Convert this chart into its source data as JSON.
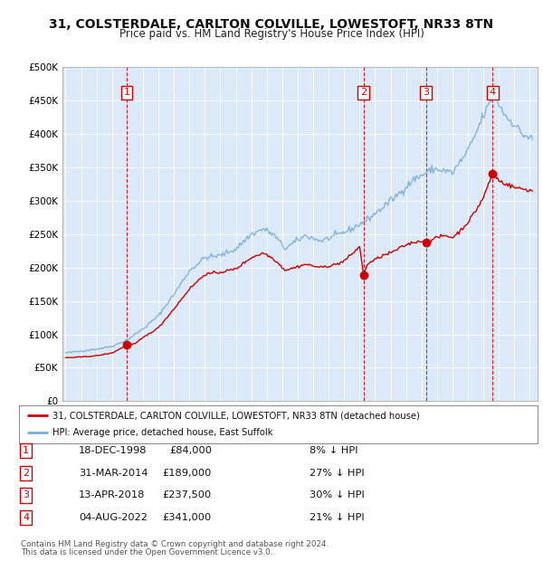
{
  "title": "31, COLSTERDALE, CARLTON COLVILLE, LOWESTOFT, NR33 8TN",
  "subtitle": "Price paid vs. HM Land Registry's House Price Index (HPI)",
  "legend_red": "31, COLSTERDALE, CARLTON COLVILLE, LOWESTOFT, NR33 8TN (detached house)",
  "legend_blue": "HPI: Average price, detached house, East Suffolk",
  "transactions": [
    {
      "num": "1",
      "date": "18-DEC-1998",
      "price": 84000,
      "price_str": "£84,000",
      "pct": "8%",
      "date_decimal": 1998.96
    },
    {
      "num": "2",
      "date": "31-MAR-2014",
      "price": 189000,
      "price_str": "£189,000",
      "pct": "27%",
      "date_decimal": 2014.25
    },
    {
      "num": "3",
      "date": "13-APR-2018",
      "price": 237500,
      "price_str": "£237,500",
      "pct": "30%",
      "date_decimal": 2018.28
    },
    {
      "num": "4",
      "date": "04-AUG-2022",
      "price": 341000,
      "price_str": "£341,000",
      "pct": "21%",
      "date_decimal": 2022.59
    }
  ],
  "footer1": "Contains HM Land Registry data © Crown copyright and database right 2024.",
  "footer2": "This data is licensed under the Open Government Licence v3.0.",
  "bg_color": "#dce9f8",
  "red_color": "#cc0000",
  "blue_color": "#7aaed6",
  "ylim_max": 500000,
  "xlim_start": 1994.8,
  "xlim_end": 2025.5,
  "yticks": [
    0,
    50000,
    100000,
    150000,
    200000,
    250000,
    300000,
    350000,
    400000,
    450000,
    500000
  ],
  "ylabels": [
    "£0",
    "£50K",
    "£100K",
    "£150K",
    "£200K",
    "£250K",
    "£300K",
    "£350K",
    "£400K",
    "£450K",
    "£500K"
  ]
}
